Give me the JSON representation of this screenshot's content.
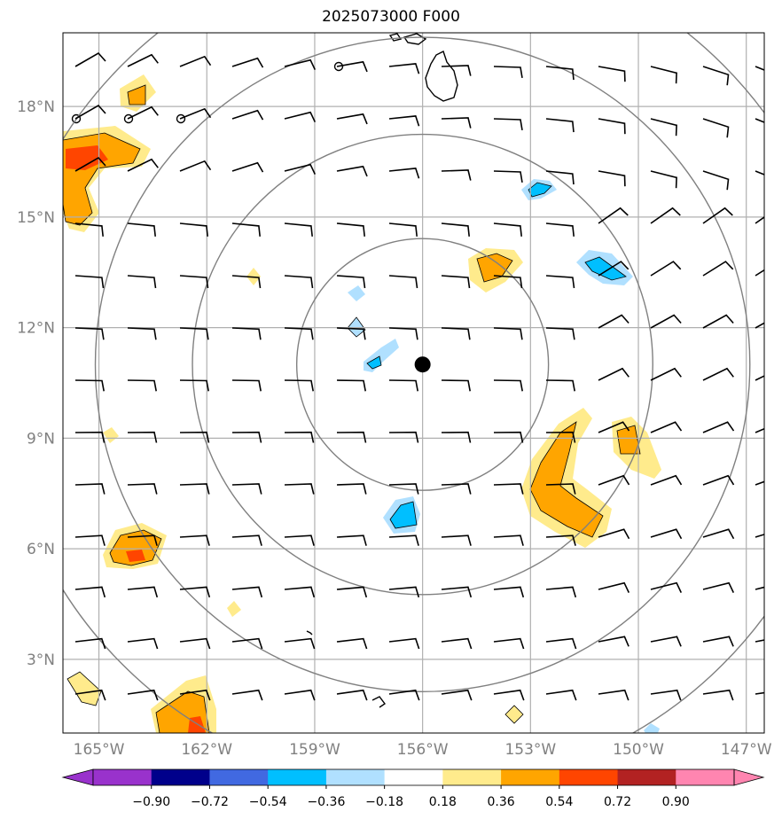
{
  "title": "2025073000 F000",
  "map": {
    "lon_range": [
      -166,
      -146.5
    ],
    "lat_range": [
      1,
      20
    ],
    "lat_ticks": [
      {
        "value": 3,
        "label": "3°N"
      },
      {
        "value": 6,
        "label": "6°N"
      },
      {
        "value": 9,
        "label": "9°N"
      },
      {
        "value": 12,
        "label": "12°N"
      },
      {
        "value": 15,
        "label": "15°N"
      },
      {
        "value": 18,
        "label": "18°N"
      }
    ],
    "lon_ticks": [
      {
        "value": -165,
        "label": "165°W"
      },
      {
        "value": -162,
        "label": "162°W"
      },
      {
        "value": -159,
        "label": "159°W"
      },
      {
        "value": -156,
        "label": "156°W"
      },
      {
        "value": -153,
        "label": "153°W"
      },
      {
        "value": -150,
        "label": "150°W"
      },
      {
        "value": -147,
        "label": "147°W"
      }
    ],
    "center": {
      "lon": -156.0,
      "lat": 11.0
    },
    "range_rings_deg": [
      3.5,
      6.4,
      9.1,
      11.8
    ],
    "grid": true
  },
  "colorbar": {
    "levels": [
      "−0.90",
      "−0.72",
      "−0.54",
      "−0.36",
      "−0.18",
      "0.18",
      "0.36",
      "0.54",
      "0.72",
      "0.90"
    ],
    "colors": [
      "#9932cc",
      "#00008b",
      "#4169e1",
      "#00bfff",
      "#b0e0ff",
      "#ffffff",
      "#ffeb8c",
      "#ffa500",
      "#ff4500",
      "#b22222",
      "#ff85b0"
    ]
  },
  "colors": {
    "grid": "#b0b0b0",
    "rings": "#808080",
    "frame": "#000000"
  }
}
